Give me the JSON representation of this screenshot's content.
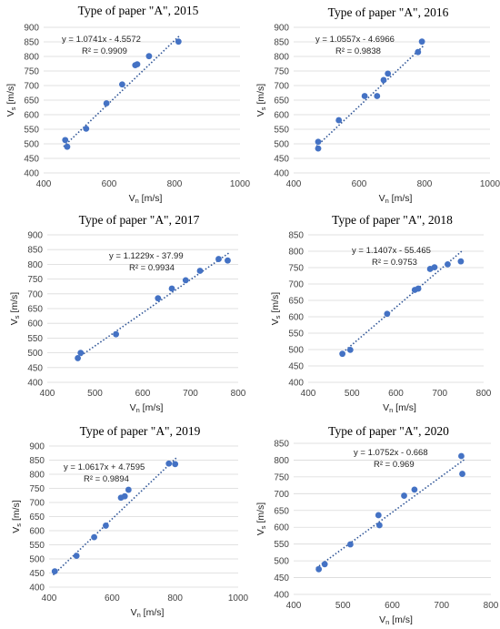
{
  "chart_data": [
    {
      "type": "scatter",
      "title": "Type of paper \"A\", 2015",
      "xlabel_main": "V",
      "xlabel_sub": "n",
      "xlabel_unit": " [m/s]",
      "ylabel_main": "V",
      "ylabel_sub": "s",
      "ylabel_unit": " [m/s]",
      "xlim": [
        400,
        1000
      ],
      "xticks": [
        400,
        600,
        800,
        1000
      ],
      "ylim": [
        400,
        900
      ],
      "yticks": [
        400,
        450,
        500,
        550,
        600,
        650,
        700,
        750,
        800,
        850,
        900
      ],
      "grid": "horizontal",
      "points": [
        [
          466,
          513
        ],
        [
          472,
          490
        ],
        [
          530,
          552
        ],
        [
          592,
          639
        ],
        [
          640,
          704
        ],
        [
          680,
          770
        ],
        [
          686,
          773
        ],
        [
          722,
          801
        ],
        [
          812,
          851
        ]
      ],
      "trendline": {
        "slope": 1.0741,
        "intercept": -4.5572,
        "equation": "y = 1.0741x - 4.5572",
        "r2": "R² = 0.9909"
      },
      "marker_color": "#4472c4"
    },
    {
      "type": "scatter",
      "title": "Type of paper \"A\", 2016",
      "xlabel_main": "V",
      "xlabel_sub": "n",
      "xlabel_unit": " [m/s]",
      "ylabel_main": "V",
      "ylabel_sub": "s",
      "ylabel_unit": " [m/s]",
      "xlim": [
        400,
        1000
      ],
      "xticks": [
        400,
        600,
        800,
        1000
      ],
      "ylim": [
        400,
        900
      ],
      "yticks": [
        400,
        450,
        500,
        550,
        600,
        650,
        700,
        750,
        800,
        850,
        900
      ],
      "grid": "horizontal",
      "points": [
        [
          475,
          484
        ],
        [
          475,
          507
        ],
        [
          538,
          581
        ],
        [
          617,
          664
        ],
        [
          655,
          664
        ],
        [
          675,
          719
        ],
        [
          688,
          741
        ],
        [
          780,
          815
        ],
        [
          792,
          851
        ]
      ],
      "trendline": {
        "slope": 1.0557,
        "intercept": -4.6966,
        "equation": "y = 1.0557x - 4.6966",
        "r2": "R² = 0.9838"
      },
      "marker_color": "#4472c4"
    },
    {
      "type": "scatter",
      "title": "Type of paper \"A\", 2017",
      "xlabel_main": "V",
      "xlabel_sub": "n",
      "xlabel_unit": " [m/s]",
      "ylabel_main": "V",
      "ylabel_sub": "s",
      "ylabel_unit": " [m/s]",
      "xlim": [
        400,
        800
      ],
      "xticks": [
        400,
        500,
        600,
        700,
        800
      ],
      "ylim": [
        400,
        900
      ],
      "yticks": [
        400,
        450,
        500,
        550,
        600,
        650,
        700,
        750,
        800,
        850,
        900
      ],
      "grid": "horizontal",
      "points": [
        [
          464,
          482
        ],
        [
          470,
          500
        ],
        [
          544,
          563
        ],
        [
          632,
          685
        ],
        [
          661,
          718
        ],
        [
          690,
          746
        ],
        [
          720,
          778
        ],
        [
          759,
          818
        ],
        [
          778,
          813
        ]
      ],
      "trendline": {
        "slope": 1.1229,
        "intercept": -37.99,
        "equation": "y = 1.1229x - 37.99",
        "r2": "R² = 0.9934"
      },
      "marker_color": "#4472c4"
    },
    {
      "type": "scatter",
      "title": "Type of paper \"A\", 2018",
      "xlabel_main": "V",
      "xlabel_sub": "n",
      "xlabel_unit": " [m/s]",
      "ylabel_main": "V",
      "ylabel_sub": "s",
      "ylabel_unit": " [m/s]",
      "xlim": [
        400,
        800
      ],
      "xticks": [
        400,
        500,
        600,
        700,
        800
      ],
      "ylim": [
        400,
        850
      ],
      "yticks": [
        400,
        450,
        500,
        550,
        600,
        650,
        700,
        750,
        800,
        850
      ],
      "grid": "horizontal",
      "points": [
        [
          478,
          487
        ],
        [
          496,
          499
        ],
        [
          580,
          609
        ],
        [
          643,
          682
        ],
        [
          651,
          686
        ],
        [
          678,
          746
        ],
        [
          688,
          751
        ],
        [
          718,
          760
        ],
        [
          748,
          769
        ]
      ],
      "trendline": {
        "slope": 1.1407,
        "intercept": -55.465,
        "equation": "y = 1.1407x - 55.465",
        "r2": "R² = 0.9753"
      },
      "marker_color": "#4472c4"
    },
    {
      "type": "scatter",
      "title": "Type of paper \"A\", 2019",
      "xlabel_main": "V",
      "xlabel_sub": "n",
      "xlabel_unit": " [m/s]",
      "ylabel_main": "V",
      "ylabel_sub": "s",
      "ylabel_unit": " [m/s]",
      "xlim": [
        400,
        1000
      ],
      "xticks": [
        400,
        600,
        800,
        1000
      ],
      "ylim": [
        400,
        900
      ],
      "yticks": [
        400,
        450,
        500,
        550,
        600,
        650,
        700,
        750,
        800,
        850,
        900
      ],
      "grid": "horizontal",
      "points": [
        [
          418,
          456
        ],
        [
          487,
          511
        ],
        [
          543,
          577
        ],
        [
          580,
          618
        ],
        [
          628,
          717
        ],
        [
          640,
          722
        ],
        [
          652,
          745
        ],
        [
          780,
          838
        ],
        [
          800,
          836
        ]
      ],
      "trendline": {
        "slope": 1.0617,
        "intercept": 4.7595,
        "equation": "y = 1.0617x + 4.7595",
        "r2": "R² = 0.9894"
      },
      "marker_color": "#4472c4"
    },
    {
      "type": "scatter",
      "title": "Type of paper \"A\", 2020",
      "xlabel_main": "V",
      "xlabel_sub": "n",
      "xlabel_unit": " [m/s]",
      "ylabel_main": "V",
      "ylabel_sub": "s",
      "ylabel_unit": " [m/s]",
      "xlim": [
        400,
        800
      ],
      "xticks": [
        400,
        500,
        600,
        700,
        800
      ],
      "ylim": [
        400,
        850
      ],
      "yticks": [
        400,
        450,
        500,
        550,
        600,
        650,
        700,
        750,
        800,
        850
      ],
      "grid": "horizontal",
      "points": [
        [
          451,
          475
        ],
        [
          463,
          490
        ],
        [
          515,
          549
        ],
        [
          572,
          636
        ],
        [
          574,
          606
        ],
        [
          624,
          694
        ],
        [
          645,
          712
        ],
        [
          740,
          812
        ],
        [
          742,
          759
        ]
      ],
      "trendline": {
        "slope": 1.0752,
        "intercept": -0.668,
        "equation": "y = 1.0752x - 0.668",
        "r2": "R² = 0.969"
      },
      "marker_color": "#4472c4"
    }
  ]
}
